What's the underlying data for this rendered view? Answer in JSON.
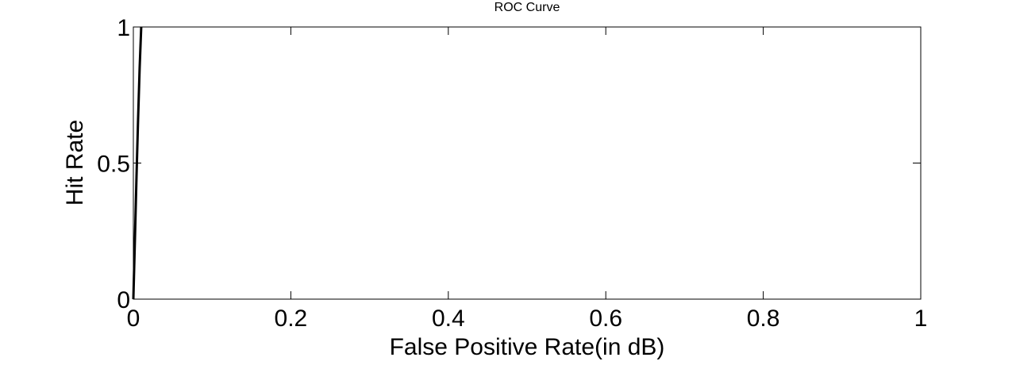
{
  "chart_data": {
    "type": "line",
    "title": "ROC Curve",
    "xlabel": "False Positive Rate(in dB)",
    "ylabel": "Hit Rate",
    "xlim": [
      0,
      1
    ],
    "ylim": [
      0,
      1
    ],
    "x_ticks": [
      0,
      0.2,
      0.4,
      0.6,
      0.8,
      1
    ],
    "x_tick_labels": [
      "0",
      "0.2",
      "0.4",
      "0.6",
      "0.8",
      "1"
    ],
    "y_ticks": [
      0,
      0.5,
      1
    ],
    "y_tick_labels": [
      "0",
      "0.5",
      "1"
    ],
    "grid": false,
    "legend": "none",
    "series": [
      {
        "color": "#000000",
        "x": [
          0,
          0.002,
          0.004,
          0.006,
          0.008,
          0.01
        ],
        "y": [
          0,
          0.22,
          0.45,
          0.66,
          0.85,
          1
        ]
      }
    ]
  }
}
